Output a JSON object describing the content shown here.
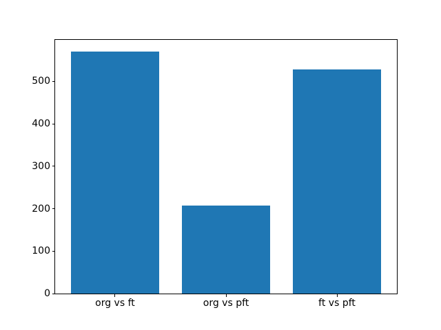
{
  "chart_data": {
    "type": "bar",
    "title": "",
    "xlabel": "",
    "ylabel": "",
    "categories": [
      "org vs ft",
      "org vs pft",
      "ft vs pft"
    ],
    "values": [
      570,
      207,
      528
    ],
    "yticks": [
      0,
      100,
      200,
      300,
      400,
      500
    ],
    "ylim": [
      0,
      598.5
    ],
    "xlim": [
      -0.54,
      2.54
    ],
    "bar_width": 0.8,
    "bar_color": "#1f77b4",
    "spine_color": "#000000",
    "background_color": "#ffffff",
    "grid": false,
    "legend": "none"
  }
}
